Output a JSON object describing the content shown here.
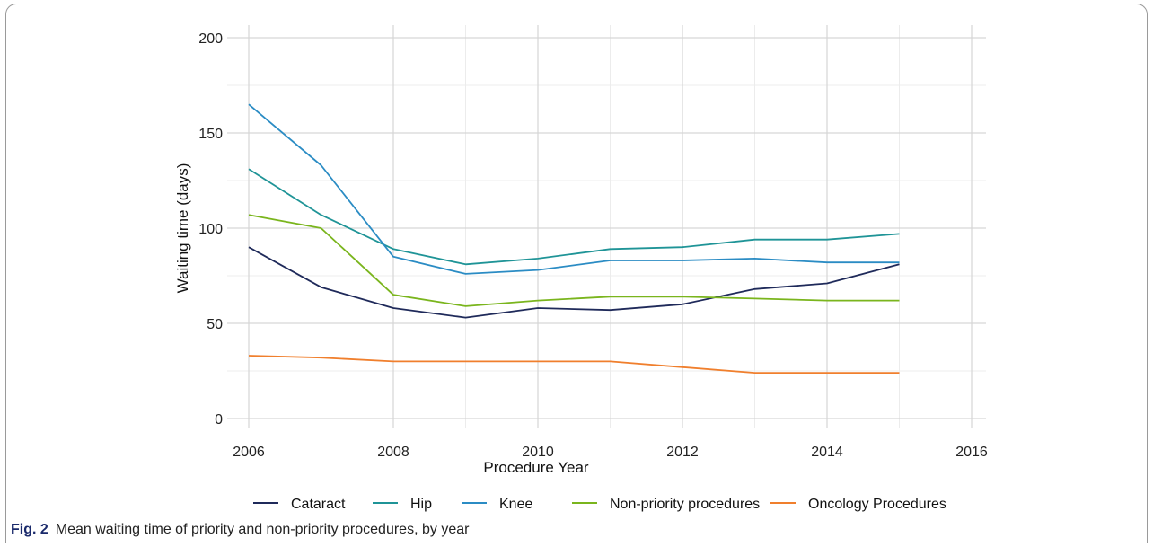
{
  "caption": {
    "label": "Fig. 2",
    "text": "Mean waiting time of priority and non-priority procedures, by year"
  },
  "chart_data": {
    "type": "line",
    "xlabel": "Procedure Year",
    "ylabel": "Waiting time (days)",
    "xlim": [
      2006,
      2016
    ],
    "ylim": [
      0,
      200
    ],
    "xticks": [
      2006,
      2008,
      2010,
      2012,
      2014,
      2016
    ],
    "yticks": [
      0,
      50,
      100,
      150,
      200
    ],
    "grid": true,
    "legend_position": "bottom",
    "x": [
      2006,
      2007,
      2008,
      2009,
      2010,
      2011,
      2012,
      2013,
      2014,
      2015
    ],
    "series": [
      {
        "name": "Cataract",
        "color": "#1f2a5a",
        "values": [
          90,
          69,
          58,
          53,
          58,
          57,
          60,
          68,
          71,
          81
        ]
      },
      {
        "name": "Hip",
        "color": "#1f9497",
        "values": [
          131,
          107,
          89,
          81,
          84,
          89,
          90,
          94,
          94,
          97
        ]
      },
      {
        "name": "Knee",
        "color": "#2b8cc4",
        "values": [
          165,
          133,
          85,
          76,
          78,
          83,
          83,
          84,
          82,
          82
        ]
      },
      {
        "name": "Non-priority procedures",
        "color": "#7ab51d",
        "values": [
          107,
          100,
          65,
          59,
          62,
          64,
          64,
          63,
          62,
          62
        ]
      },
      {
        "name": "Oncology Procedures",
        "color": "#f07f2d",
        "values": [
          33,
          32,
          30,
          30,
          30,
          30,
          27,
          24,
          24,
          24
        ]
      }
    ]
  }
}
